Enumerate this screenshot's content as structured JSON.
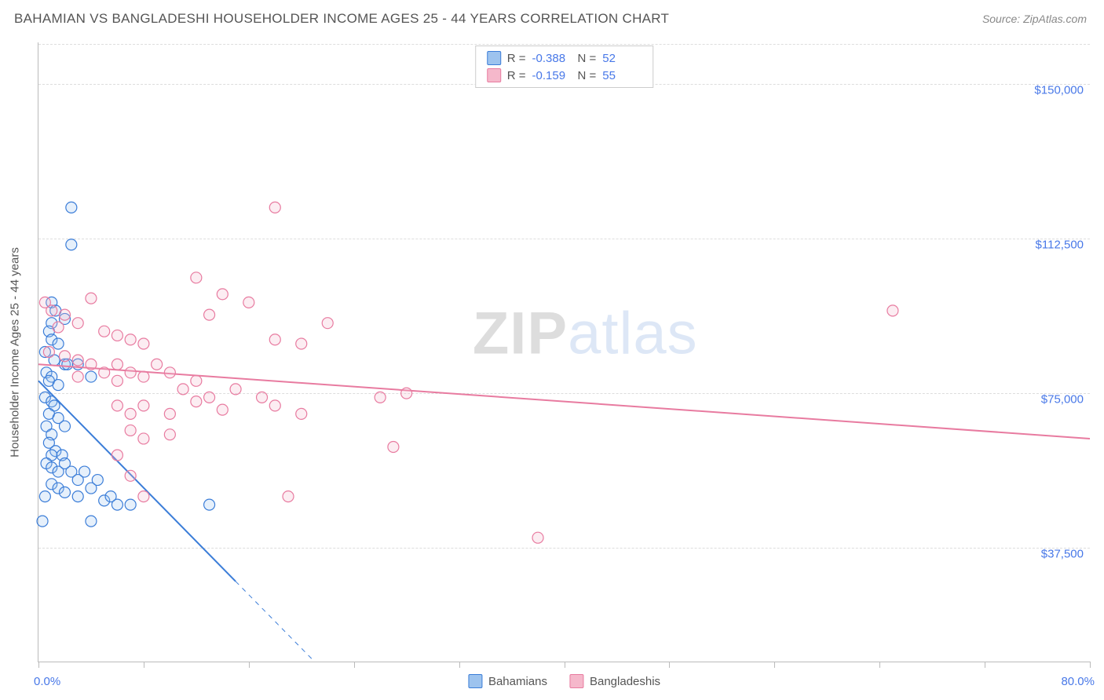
{
  "title": "BAHAMIAN VS BANGLADESHI HOUSEHOLDER INCOME AGES 25 - 44 YEARS CORRELATION CHART",
  "source": "Source: ZipAtlas.com",
  "watermark_prefix": "ZIP",
  "watermark_suffix": "atlas",
  "chart": {
    "type": "scatter",
    "background_color": "#ffffff",
    "grid_color": "#dddddd",
    "axis_color": "#bbbbbb",
    "tick_label_color": "#4878e8",
    "xlim": [
      0,
      80
    ],
    "ylim": [
      10000,
      160000
    ],
    "y_gridlines": [
      37500,
      75000,
      112500,
      150000
    ],
    "y_tick_labels": [
      "$37,500",
      "$75,000",
      "$112,500",
      "$150,000"
    ],
    "x_tick_positions": [
      0,
      8,
      16,
      24,
      32,
      40,
      48,
      56,
      64,
      72,
      80
    ],
    "x_min_label": "0.0%",
    "x_max_label": "80.0%",
    "yaxis_title": "Householder Income Ages 25 - 44 years",
    "point_radius": 7,
    "point_stroke_width": 1.2,
    "point_fill_opacity": 0.25,
    "line_width": 2,
    "series": [
      {
        "name": "Bahamians",
        "color_stroke": "#3b7dd8",
        "color_fill": "#9dc3ee",
        "R": "-0.388",
        "N": "52",
        "trend": {
          "x1": 0,
          "y1": 78000,
          "x2": 21,
          "y2": 10000,
          "dash_from_x": 15
        },
        "points": [
          [
            2.5,
            120000
          ],
          [
            2.5,
            111000
          ],
          [
            1,
            97000
          ],
          [
            1.3,
            95000
          ],
          [
            1,
            92000
          ],
          [
            2,
            93000
          ],
          [
            0.8,
            90000
          ],
          [
            1,
            88000
          ],
          [
            1.5,
            87000
          ],
          [
            0.5,
            85000
          ],
          [
            1.2,
            83000
          ],
          [
            2,
            82000
          ],
          [
            0.6,
            80000
          ],
          [
            1,
            79000
          ],
          [
            0.8,
            78000
          ],
          [
            1.5,
            77000
          ],
          [
            2.2,
            82000
          ],
          [
            3,
            82000
          ],
          [
            4,
            79000
          ],
          [
            0.5,
            74000
          ],
          [
            1,
            73000
          ],
          [
            1.2,
            72000
          ],
          [
            0.8,
            70000
          ],
          [
            1.5,
            69000
          ],
          [
            0.6,
            67000
          ],
          [
            1,
            65000
          ],
          [
            2,
            67000
          ],
          [
            0.8,
            63000
          ],
          [
            1.3,
            61000
          ],
          [
            1,
            60000
          ],
          [
            1.8,
            60000
          ],
          [
            0.6,
            58000
          ],
          [
            1,
            57000
          ],
          [
            1.5,
            56000
          ],
          [
            2,
            58000
          ],
          [
            2.5,
            56000
          ],
          [
            3,
            54000
          ],
          [
            3.5,
            56000
          ],
          [
            4,
            52000
          ],
          [
            4.5,
            54000
          ],
          [
            1,
            53000
          ],
          [
            1.5,
            52000
          ],
          [
            2,
            51000
          ],
          [
            0.5,
            50000
          ],
          [
            3,
            50000
          ],
          [
            5,
            49000
          ],
          [
            5.5,
            50000
          ],
          [
            6,
            48000
          ],
          [
            7,
            48000
          ],
          [
            0.3,
            44000
          ],
          [
            4,
            44000
          ],
          [
            13,
            48000
          ]
        ]
      },
      {
        "name": "Bangladeshis",
        "color_stroke": "#e87ba0",
        "color_fill": "#f5b8cb",
        "R": "-0.159",
        "N": "55",
        "trend": {
          "x1": 0,
          "y1": 82000,
          "x2": 80,
          "y2": 64000
        },
        "points": [
          [
            18,
            120000
          ],
          [
            12,
            103000
          ],
          [
            14,
            99000
          ],
          [
            4,
            98000
          ],
          [
            0.5,
            97000
          ],
          [
            1,
            95000
          ],
          [
            2,
            94000
          ],
          [
            16,
            97000
          ],
          [
            3,
            92000
          ],
          [
            1.5,
            91000
          ],
          [
            5,
            90000
          ],
          [
            13,
            94000
          ],
          [
            22,
            92000
          ],
          [
            6,
            89000
          ],
          [
            7,
            88000
          ],
          [
            8,
            87000
          ],
          [
            18,
            88000
          ],
          [
            20,
            87000
          ],
          [
            0.8,
            85000
          ],
          [
            2,
            84000
          ],
          [
            3,
            83000
          ],
          [
            4,
            82000
          ],
          [
            5,
            80000
          ],
          [
            6,
            82000
          ],
          [
            7,
            80000
          ],
          [
            8,
            79000
          ],
          [
            9,
            82000
          ],
          [
            10,
            80000
          ],
          [
            3,
            79000
          ],
          [
            6,
            78000
          ],
          [
            11,
            76000
          ],
          [
            12,
            78000
          ],
          [
            13,
            74000
          ],
          [
            15,
            76000
          ],
          [
            17,
            74000
          ],
          [
            6,
            72000
          ],
          [
            7,
            70000
          ],
          [
            8,
            72000
          ],
          [
            10,
            70000
          ],
          [
            12,
            73000
          ],
          [
            14,
            71000
          ],
          [
            18,
            72000
          ],
          [
            20,
            70000
          ],
          [
            26,
            74000
          ],
          [
            7,
            66000
          ],
          [
            8,
            64000
          ],
          [
            10,
            65000
          ],
          [
            7,
            55000
          ],
          [
            8,
            50000
          ],
          [
            19,
            50000
          ],
          [
            27,
            62000
          ],
          [
            28,
            75000
          ],
          [
            38,
            40000
          ],
          [
            65,
            95000
          ],
          [
            6,
            60000
          ]
        ]
      }
    ],
    "legend_bottom": [
      "Bahamians",
      "Bangladeshis"
    ]
  }
}
